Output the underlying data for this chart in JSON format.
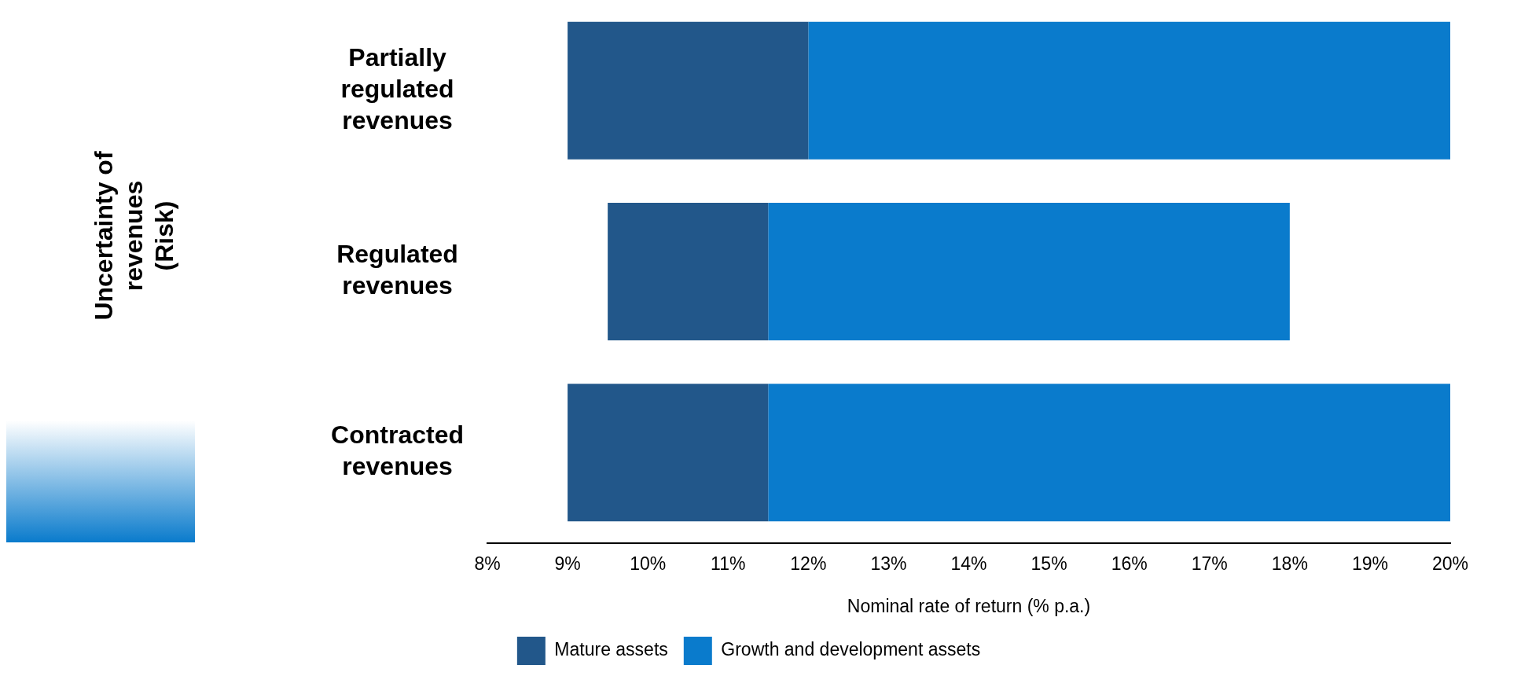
{
  "chart_data": {
    "type": "bar",
    "orientation": "horizontal",
    "annotations": [
      "Uncertainty of revenues (Risk)"
    ],
    "xlabel": "Nominal rate of return (% p.a.)",
    "categories": [
      "Partially regulated revenues",
      "Regulated revenues",
      "Contracted revenues"
    ],
    "series": [
      {
        "name": "Mature assets",
        "color": "#22578a",
        "base": [
          9,
          9.5,
          9
        ],
        "values": [
          3,
          2,
          2.5
        ]
      },
      {
        "name": "Growth and development assets",
        "color": "#0a7bcc",
        "base": [
          12,
          11.5,
          11.5
        ],
        "values": [
          8,
          6.5,
          8.5
        ]
      }
    ],
    "xlim": [
      8,
      20
    ],
    "xticks": [
      {
        "value": 8,
        "label": "8%"
      },
      {
        "value": 9,
        "label": "9%"
      },
      {
        "value": 10,
        "label": "10%"
      },
      {
        "value": 11,
        "label": "11%"
      },
      {
        "value": 12,
        "label": "12%"
      },
      {
        "value": 13,
        "label": "13%"
      },
      {
        "value": 14,
        "label": "14%"
      },
      {
        "value": 15,
        "label": "15%"
      },
      {
        "value": 16,
        "label": "16%"
      },
      {
        "value": 17,
        "label": "17%"
      },
      {
        "value": 18,
        "label": "18%"
      },
      {
        "value": 19,
        "label": "19%"
      },
      {
        "value": 20,
        "label": "20%"
      }
    ],
    "grid": false,
    "legend": "bottom"
  }
}
